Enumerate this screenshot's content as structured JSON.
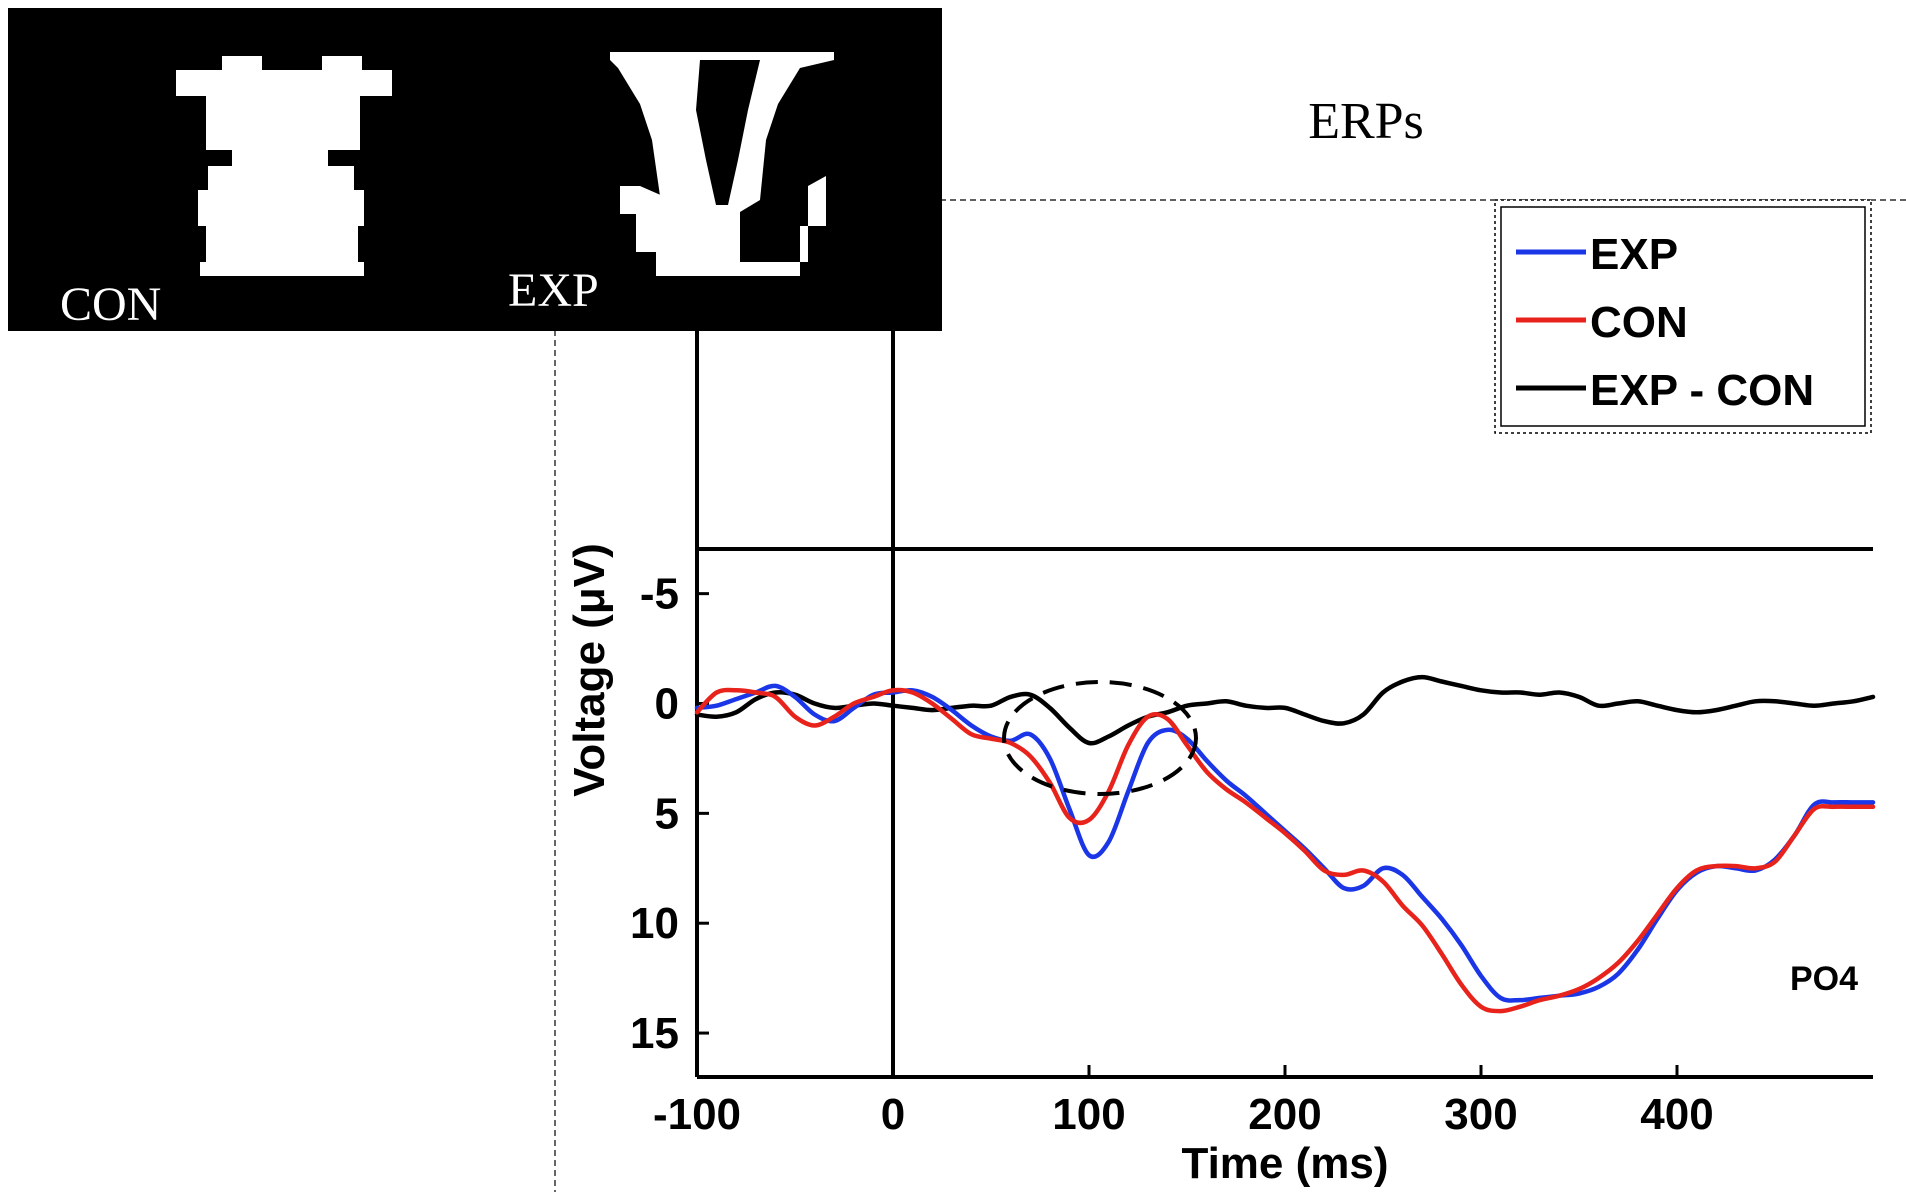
{
  "figure": {
    "header": "ERPs",
    "stimuli": {
      "con_label": "CON",
      "exp_label": "EXP"
    },
    "electrode_label": "PO4"
  },
  "chart_data": {
    "type": "line",
    "xlabel": "Time (ms)",
    "ylabel": "Voltage (μV)",
    "xlim": [
      -100,
      500
    ],
    "ylim": [
      -17,
      17
    ],
    "y_reversed": true,
    "x_ticks": [
      -100,
      0,
      100,
      200,
      300,
      400
    ],
    "y_ticks": [
      -5,
      0,
      5,
      10,
      15
    ],
    "grid": false,
    "legend_position": "top-right",
    "reference_lines": {
      "zero_voltage": true,
      "stimulus_onset_ms": 0
    },
    "annotation": "dashed ellipse marking the EXP vs CON difference around 100 ms",
    "colors": {
      "EXP": "#1a36e6",
      "CON": "#e8231b",
      "EXP - CON": "#000000"
    },
    "x": [
      -100,
      -90,
      -80,
      -70,
      -60,
      -50,
      -40,
      -30,
      -20,
      -10,
      0,
      10,
      20,
      30,
      40,
      50,
      60,
      70,
      80,
      90,
      100,
      110,
      120,
      130,
      140,
      150,
      160,
      170,
      180,
      190,
      200,
      210,
      220,
      230,
      240,
      250,
      260,
      270,
      280,
      290,
      300,
      310,
      320,
      330,
      340,
      350,
      360,
      370,
      380,
      390,
      400,
      410,
      420,
      430,
      440,
      450,
      460,
      470,
      480,
      490,
      500
    ],
    "series": [
      {
        "name": "EXP",
        "values": [
          0.2,
          0.1,
          -0.2,
          -0.5,
          -0.8,
          -0.3,
          0.5,
          0.8,
          0.2,
          -0.4,
          -0.5,
          -0.6,
          -0.3,
          0.3,
          1.0,
          1.5,
          1.7,
          1.4,
          2.5,
          4.8,
          6.9,
          6.3,
          4.0,
          1.8,
          1.2,
          1.6,
          2.6,
          3.5,
          4.2,
          5.0,
          5.8,
          6.6,
          7.5,
          8.4,
          8.3,
          7.5,
          7.8,
          8.8,
          9.8,
          11.0,
          12.4,
          13.4,
          13.5,
          13.4,
          13.3,
          13.2,
          12.9,
          12.3,
          11.2,
          9.8,
          8.5,
          7.7,
          7.4,
          7.5,
          7.6,
          7.1,
          6.0,
          4.6,
          4.5,
          4.5,
          4.5
        ]
      },
      {
        "name": "CON",
        "values": [
          0.4,
          -0.5,
          -0.6,
          -0.5,
          -0.3,
          0.6,
          1.0,
          0.6,
          0.0,
          -0.3,
          -0.6,
          -0.5,
          0.0,
          0.7,
          1.4,
          1.6,
          1.8,
          2.4,
          3.6,
          5.2,
          5.3,
          4.0,
          1.9,
          0.6,
          0.7,
          1.9,
          3.1,
          3.9,
          4.5,
          5.2,
          5.9,
          6.7,
          7.6,
          7.8,
          7.6,
          8.1,
          9.2,
          10.1,
          11.4,
          12.8,
          13.8,
          14.0,
          13.8,
          13.5,
          13.3,
          13.0,
          12.5,
          11.8,
          10.8,
          9.6,
          8.4,
          7.6,
          7.4,
          7.4,
          7.5,
          7.2,
          6.0,
          4.8,
          4.7,
          4.7,
          4.7
        ]
      },
      {
        "name": "EXP - CON",
        "values": [
          0.5,
          0.6,
          0.4,
          -0.2,
          -0.5,
          -0.4,
          0.0,
          0.2,
          0.1,
          0.0,
          0.1,
          0.2,
          0.3,
          0.2,
          0.1,
          0.1,
          -0.3,
          -0.4,
          0.2,
          1.1,
          1.8,
          1.5,
          1.0,
          0.6,
          0.4,
          0.1,
          0.0,
          -0.1,
          0.1,
          0.2,
          0.2,
          0.5,
          0.8,
          0.9,
          0.5,
          -0.5,
          -1.0,
          -1.2,
          -1.0,
          -0.8,
          -0.6,
          -0.5,
          -0.5,
          -0.4,
          -0.5,
          -0.3,
          0.1,
          0.0,
          -0.1,
          0.1,
          0.3,
          0.4,
          0.3,
          0.1,
          -0.1,
          -0.1,
          0.0,
          0.1,
          0.0,
          -0.1,
          -0.3
        ]
      }
    ]
  }
}
